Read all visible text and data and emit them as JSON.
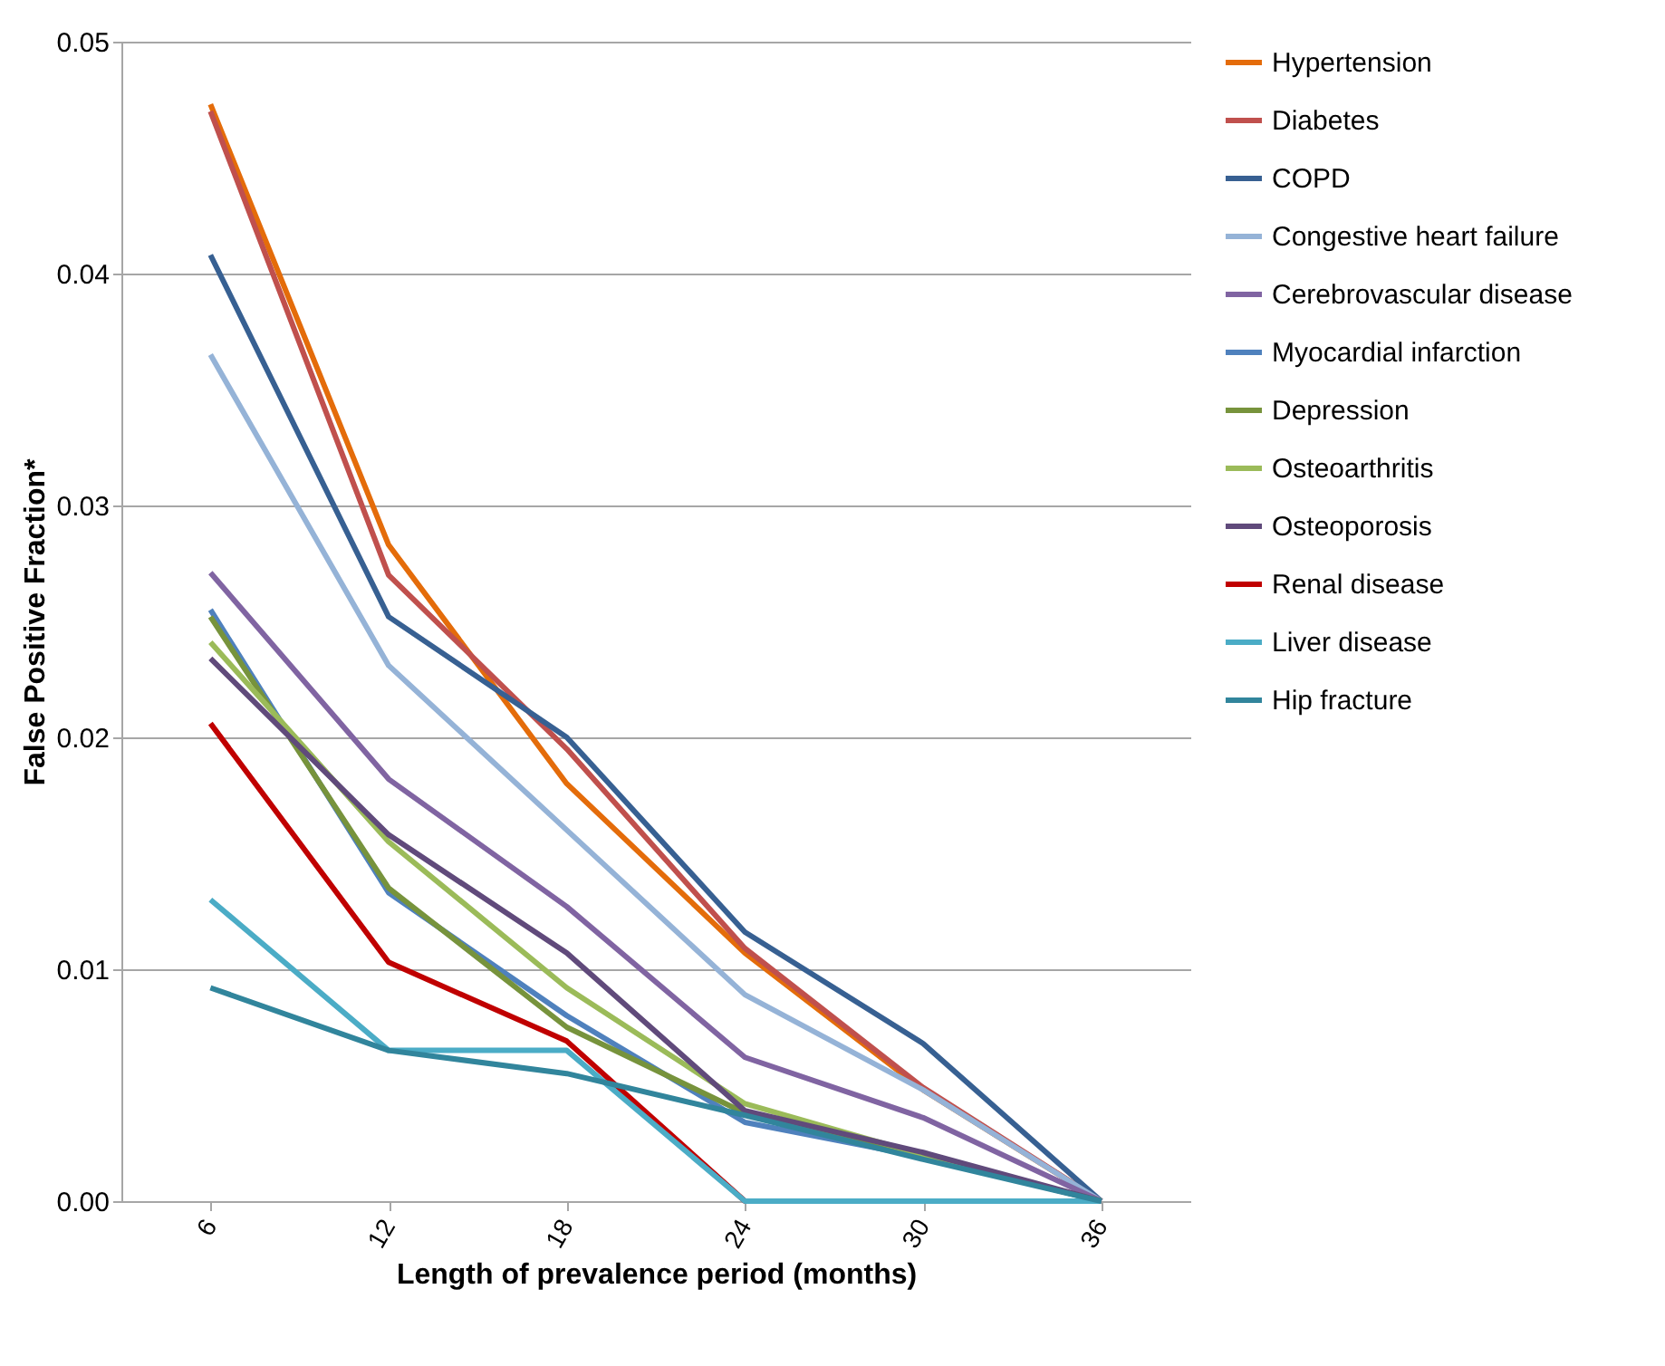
{
  "chart_data": {
    "type": "line",
    "xlabel": "Length of prevalence period (months)",
    "ylabel": "False Positive Fraction*",
    "categories": [
      "6",
      "12",
      "18",
      "24",
      "30",
      "36"
    ],
    "ylim": [
      0,
      0.05
    ],
    "yticks": [
      {
        "value": 0,
        "label": "0.00"
      },
      {
        "value": 0.01,
        "label": "0.01"
      },
      {
        "value": 0.02,
        "label": "0.02"
      },
      {
        "value": 0.03,
        "label": "0.03"
      },
      {
        "value": 0.04,
        "label": "0.04"
      },
      {
        "value": 0.05,
        "label": "0.05"
      }
    ],
    "grid": "y",
    "legend": "right",
    "marker": "none",
    "line_style": "solid",
    "series": [
      {
        "name": "Hypertension",
        "color": "#e46c0a",
        "values": [
          0.0473,
          0.0283,
          0.018,
          0.0107,
          0.0048,
          0
        ]
      },
      {
        "name": "Diabetes",
        "color": "#c0504d",
        "values": [
          0.047,
          0.027,
          0.0195,
          0.0109,
          0.0049,
          0
        ]
      },
      {
        "name": "COPD",
        "color": "#376092",
        "values": [
          0.0408,
          0.0252,
          0.02,
          0.0116,
          0.0068,
          0
        ]
      },
      {
        "name": "Congestive heart failure",
        "color": "#95b3d7",
        "values": [
          0.0365,
          0.0231,
          0.016,
          0.0089,
          0.0048,
          0
        ]
      },
      {
        "name": "Cerebrovascular disease",
        "color": "#8064a2",
        "values": [
          0.0271,
          0.0182,
          0.0127,
          0.0062,
          0.0036,
          0
        ]
      },
      {
        "name": "Myocardial infarction",
        "color": "#4f81bd",
        "values": [
          0.0255,
          0.0133,
          0.008,
          0.0034,
          0.0019,
          0
        ]
      },
      {
        "name": "Depression",
        "color": "#77933c",
        "values": [
          0.0252,
          0.0135,
          0.0075,
          0.0038,
          0.0019,
          0
        ]
      },
      {
        "name": "Osteoarthritis",
        "color": "#9bbb59",
        "values": [
          0.0241,
          0.0155,
          0.0092,
          0.0042,
          0.002,
          0
        ]
      },
      {
        "name": "Osteoporosis",
        "color": "#604a7b",
        "values": [
          0.0234,
          0.0158,
          0.0107,
          0.0039,
          0.0021,
          0
        ]
      },
      {
        "name": "Renal disease",
        "color": "#c00000",
        "values": [
          0.0206,
          0.0103,
          0.0069,
          0,
          0,
          0
        ]
      },
      {
        "name": "Liver disease",
        "color": "#4bacc6",
        "values": [
          0.013,
          0.0065,
          0.0065,
          0,
          0,
          0
        ]
      },
      {
        "name": "Hip fracture",
        "color": "#31859c",
        "values": [
          0.0092,
          0.0065,
          0.0055,
          0.0037,
          0.0018,
          0
        ]
      }
    ]
  }
}
